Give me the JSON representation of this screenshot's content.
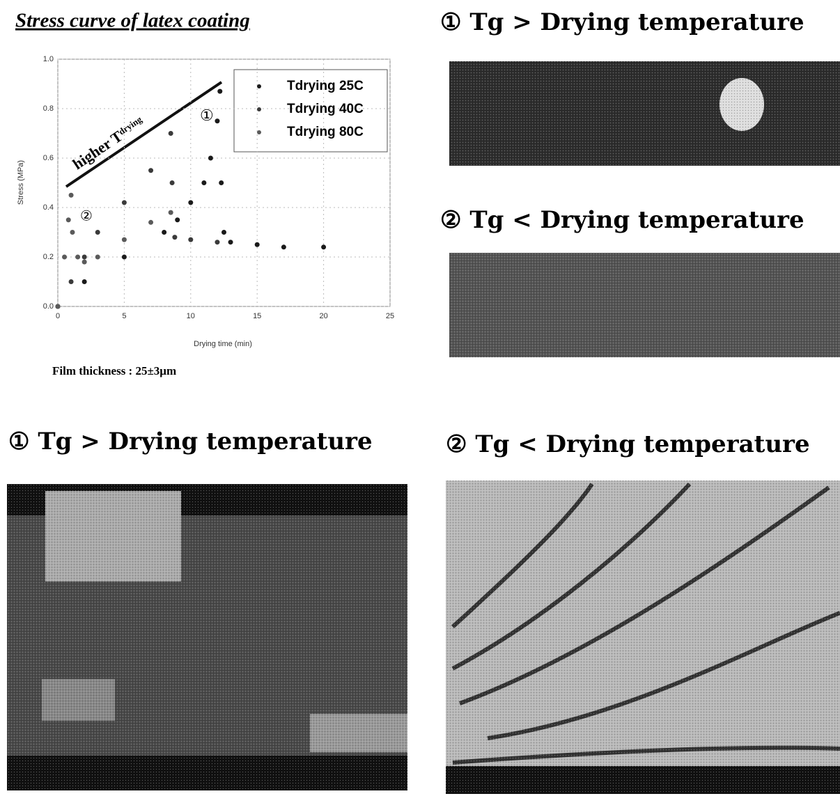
{
  "chart_data": {
    "type": "scatter",
    "title": "Stress curve of latex coating",
    "x_label": "Drying time (min)",
    "y_label": "Stress (MPa)",
    "xlim": [
      0,
      25
    ],
    "xticks": [
      0,
      5,
      10,
      15,
      20,
      25
    ],
    "ylim": [
      0,
      1
    ],
    "yticks": [
      {
        "value": 0,
        "label": "0.0"
      },
      0.2,
      0.4,
      0.6,
      0.8,
      {
        "value": 1,
        "label": "1.0"
      }
    ],
    "grid": true,
    "legend": "upper right",
    "series": [
      {
        "name": "Tdrying 25C",
        "color": "#1a1a1a",
        "x": [
          0,
          2,
          5,
          8,
          9,
          10,
          11,
          11.5,
          12,
          12.2,
          12.3,
          12.5,
          13,
          15,
          17,
          20
        ],
        "values": [
          0,
          0.1,
          0.2,
          0.3,
          0.35,
          0.42,
          0.5,
          0.6,
          0.75,
          0.87,
          0.5,
          0.3,
          0.26,
          0.25,
          0.24,
          0.24
        ]
      },
      {
        "name": "Tdrying 40C",
        "color": "#3a3a3a",
        "x": [
          0,
          1,
          2,
          3,
          5,
          7,
          8.5,
          8.6,
          8.8,
          10,
          12
        ],
        "values": [
          0,
          0.1,
          0.2,
          0.3,
          0.42,
          0.55,
          0.7,
          0.5,
          0.28,
          0.27,
          0.26
        ]
      },
      {
        "name": "Tdrying 80C",
        "color": "#5a5a5a",
        "x": [
          0,
          0.5,
          0.8,
          1,
          1.1,
          1.5,
          2,
          3,
          5,
          7,
          8.5
        ],
        "values": [
          0,
          0.2,
          0.35,
          0.45,
          0.3,
          0.2,
          0.18,
          0.2,
          0.27,
          0.34,
          0.38
        ]
      }
    ],
    "annotations": [
      "higher T",
      "drying",
      "①",
      "②"
    ]
  },
  "caption": "Film thickness : 25±3μm",
  "panels": [
    {
      "label": "① Tg > Drying temperature"
    },
    {
      "label": "② Tg < Drying temperature"
    },
    {
      "label": "① Tg > Drying temperature"
    },
    {
      "label": "② Tg < Drying temperature"
    }
  ]
}
